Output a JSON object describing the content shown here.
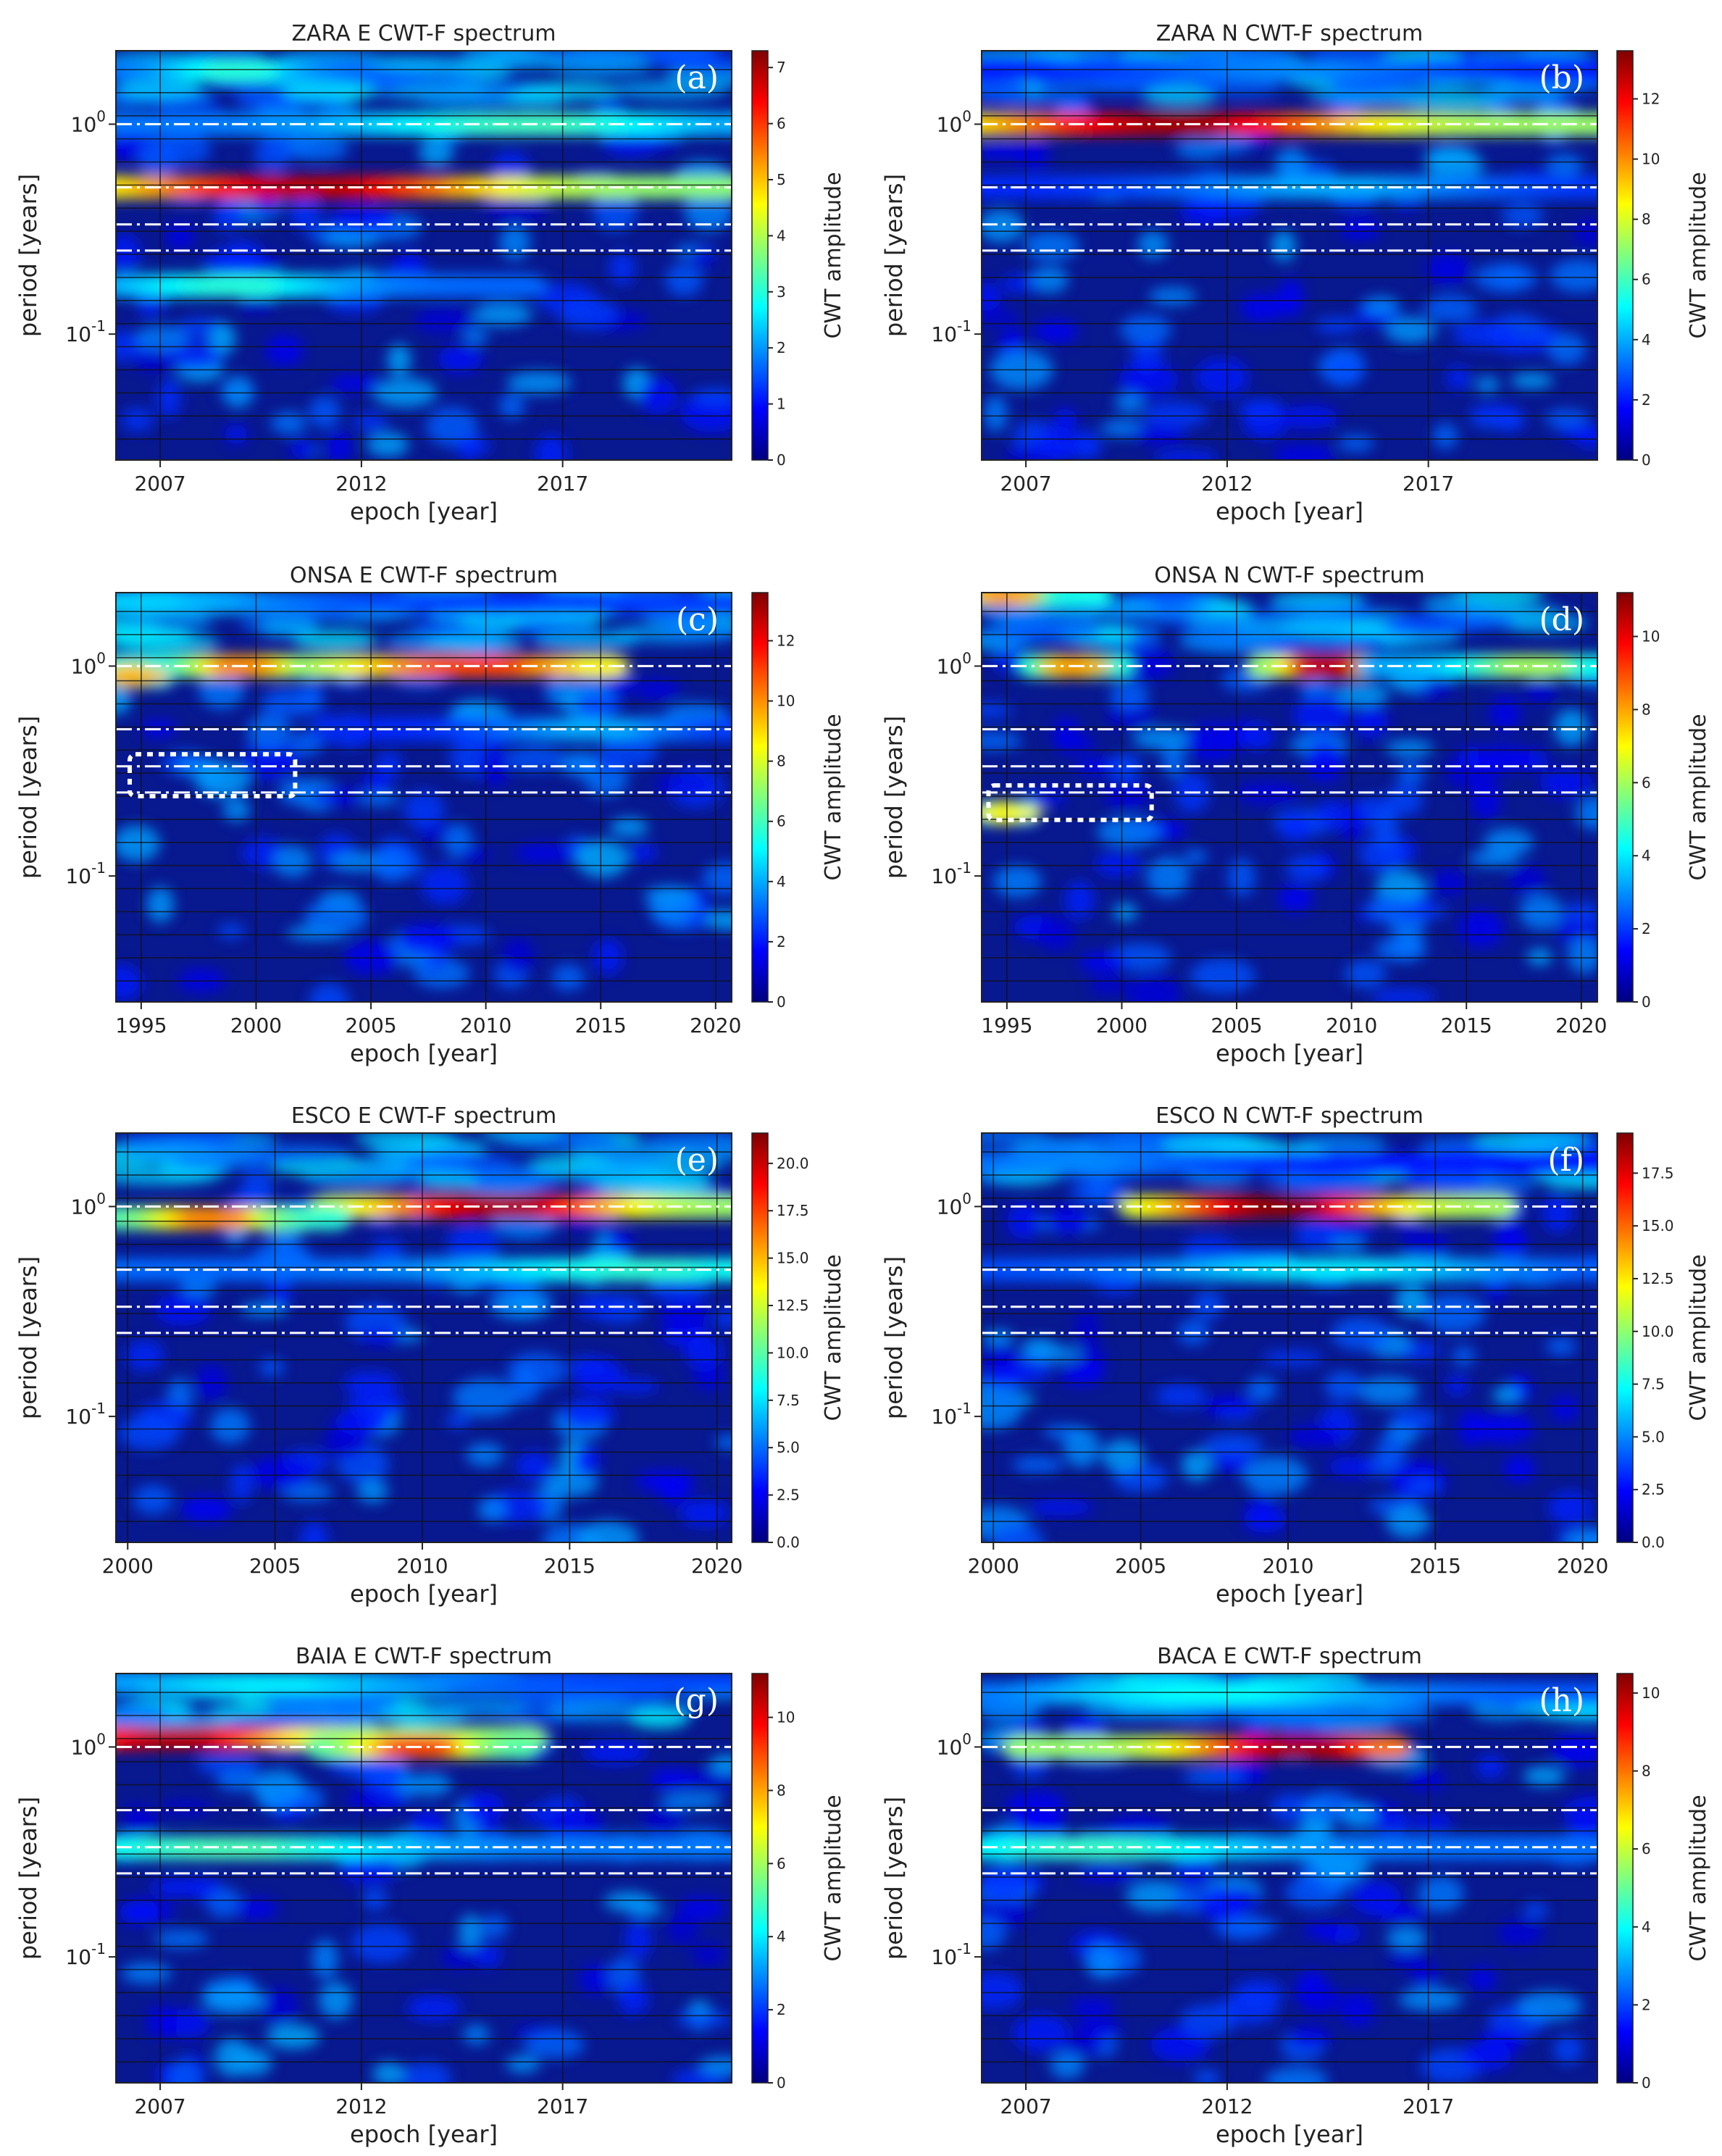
{
  "colors": {
    "jet": [
      "#00007f",
      "#0000ff",
      "#007fff",
      "#00ffff",
      "#7fff7f",
      "#ffff00",
      "#ff7f00",
      "#ff0000",
      "#7f0000"
    ],
    "background": "#08188f",
    "reference_lines": "#ffffff",
    "highlight_box": "#ffffff"
  },
  "chart_data": [
    {
      "id": "a",
      "panel_label": "(a)",
      "type": "heatmap",
      "title": "ZARA E CWT-F spectrum",
      "xlabel": "epoch [year]",
      "ylabel": "period [years]",
      "colorbar_label": "CWT amplitude",
      "xlim": [
        2005.9,
        2021.2
      ],
      "xticks": [
        2007,
        2012,
        2017
      ],
      "xtick_labels": [
        "2007",
        "2012",
        "2017"
      ],
      "ylim_log10": [
        -1.6,
        0.35
      ],
      "ytick_labels": [
        "10^-1",
        "10^0"
      ],
      "clim": [
        0,
        7.3
      ],
      "cbar_ticks": [
        0,
        1,
        2,
        3,
        4,
        5,
        6,
        7
      ],
      "cbar_tick_labels": [
        "0",
        "1",
        "2",
        "3",
        "4",
        "5",
        "6",
        "7"
      ],
      "reference_periods": [
        0.25,
        0.333,
        0.5,
        1.0
      ],
      "features": [
        {
          "period": 0.5,
          "start": 2006,
          "end": 2021.2,
          "peak": 2011,
          "amp": 6.8
        },
        {
          "period": 1.0,
          "start": 2006,
          "end": 2021.2,
          "peak": 2016.5,
          "amp": 3.2
        },
        {
          "period": 1.8,
          "start": 2006,
          "end": 2012,
          "peak": 2009,
          "amp": 3.0
        },
        {
          "period": 0.17,
          "start": 2006,
          "end": 2016,
          "peak": 2009,
          "amp": 3.0
        }
      ]
    },
    {
      "id": "b",
      "panel_label": "(b)",
      "type": "heatmap",
      "title": "ZARA N CWT-F spectrum",
      "xlabel": "epoch [year]",
      "ylabel": "period [years]",
      "colorbar_label": "CWT amplitude",
      "xlim": [
        2005.9,
        2021.2
      ],
      "xticks": [
        2007,
        2012,
        2017
      ],
      "xtick_labels": [
        "2007",
        "2012",
        "2017"
      ],
      "ylim_log10": [
        -1.6,
        0.35
      ],
      "ytick_labels": [
        "10^-1",
        "10^0"
      ],
      "clim": [
        0,
        13.6
      ],
      "cbar_ticks": [
        0,
        2,
        4,
        6,
        8,
        10,
        12
      ],
      "cbar_tick_labels": [
        "0",
        "2",
        "4",
        "6",
        "8",
        "10",
        "12"
      ],
      "reference_periods": [
        0.25,
        0.333,
        0.5,
        1.0
      ],
      "features": [
        {
          "period": 1.0,
          "start": 2006,
          "end": 2021.2,
          "peak": 2011,
          "amp": 13.0
        },
        {
          "period": 0.5,
          "start": 2006,
          "end": 2021.2,
          "peak": 2015,
          "amp": 4.0
        },
        {
          "period": 1.8,
          "start": 2006,
          "end": 2021.2,
          "peak": 2014,
          "amp": 3.5
        }
      ]
    },
    {
      "id": "c",
      "panel_label": "(c)",
      "type": "heatmap",
      "title": "ONSA E CWT-F spectrum",
      "xlabel": "epoch [year]",
      "ylabel": "period [years]",
      "colorbar_label": "CWT amplitude",
      "xlim": [
        1993.9,
        2020.7
      ],
      "xticks": [
        1995,
        2000,
        2005,
        2010,
        2015,
        2020
      ],
      "xtick_labels": [
        "1995",
        "2000",
        "2005",
        "2010",
        "2015",
        "2020"
      ],
      "ylim_log10": [
        -1.6,
        0.35
      ],
      "ytick_labels": [
        "10^-1",
        "10^0"
      ],
      "clim": [
        0,
        13.6
      ],
      "cbar_ticks": [
        0,
        2,
        4,
        6,
        8,
        10,
        12
      ],
      "cbar_tick_labels": [
        "0",
        "2",
        "4",
        "6",
        "8",
        "10",
        "12"
      ],
      "reference_periods": [
        0.25,
        0.333,
        0.5,
        1.0
      ],
      "highlight_box": {
        "x_start": 1994.5,
        "x_end": 2001.7,
        "period_low": 0.24,
        "period_high": 0.38
      },
      "features": [
        {
          "period": 1.0,
          "start": 1994,
          "end": 2015,
          "peak": 2010,
          "amp": 11.0
        },
        {
          "period": 1.0,
          "start": 1994,
          "end": 2001,
          "peak": 1999.5,
          "amp": 10.0
        },
        {
          "period": 0.9,
          "start": 1994,
          "end": 1996,
          "peak": 1994.7,
          "amp": 9.5
        },
        {
          "period": 0.5,
          "start": 2005,
          "end": 2020.7,
          "peak": 2015,
          "amp": 4.0
        },
        {
          "period": 2.0,
          "start": 1994,
          "end": 2020.7,
          "peak": 1995,
          "amp": 4.5
        }
      ]
    },
    {
      "id": "d",
      "panel_label": "(d)",
      "type": "heatmap",
      "title": "ONSA N CWT-F spectrum",
      "xlabel": "epoch [year]",
      "ylabel": "period [years]",
      "colorbar_label": "CWT amplitude",
      "xlim": [
        1993.9,
        2020.7
      ],
      "xticks": [
        1995,
        2000,
        2005,
        2010,
        2015,
        2020
      ],
      "xtick_labels": [
        "1995",
        "2000",
        "2005",
        "2010",
        "2015",
        "2020"
      ],
      "ylim_log10": [
        -1.6,
        0.35
      ],
      "ytick_labels": [
        "10^-1",
        "10^0"
      ],
      "clim": [
        0,
        11.2
      ],
      "cbar_ticks": [
        0,
        2,
        4,
        6,
        8,
        10
      ],
      "cbar_tick_labels": [
        "0",
        "2",
        "4",
        "6",
        "8",
        "10"
      ],
      "reference_periods": [
        0.25,
        0.333,
        0.5,
        1.0
      ],
      "highlight_box": {
        "x_start": 1994.2,
        "x_end": 2001.3,
        "period_low": 0.185,
        "period_high": 0.27
      },
      "features": [
        {
          "period": 1.0,
          "start": 2006,
          "end": 2011,
          "peak": 2009,
          "amp": 10.5
        },
        {
          "period": 1.0,
          "start": 1996,
          "end": 2000,
          "peak": 1998,
          "amp": 8.0
        },
        {
          "period": 1.0,
          "start": 2011,
          "end": 2020.7,
          "peak": 2018,
          "amp": 6.0
        },
        {
          "period": 0.2,
          "start": 1994,
          "end": 1996,
          "peak": 1995,
          "amp": 7.0
        },
        {
          "period": 2.2,
          "start": 1994,
          "end": 1999,
          "peak": 1995,
          "amp": 8.0
        }
      ]
    },
    {
      "id": "e",
      "panel_label": "(e)",
      "type": "heatmap",
      "title": "ESCO E CWT-F spectrum",
      "xlabel": "epoch [year]",
      "ylabel": "period [years]",
      "colorbar_label": "CWT amplitude",
      "xlim": [
        1999.6,
        2020.5
      ],
      "xticks": [
        2000,
        2005,
        2010,
        2015,
        2020
      ],
      "xtick_labels": [
        "2000",
        "2005",
        "2010",
        "2015",
        "2020"
      ],
      "ylim_log10": [
        -1.6,
        0.35
      ],
      "ytick_labels": [
        "10^-1",
        "10^0"
      ],
      "clim": [
        0,
        21.6
      ],
      "cbar_ticks": [
        0,
        2.5,
        5,
        7.5,
        10,
        12.5,
        15,
        17.5,
        20
      ],
      "cbar_tick_labels": [
        "0.0",
        "2.5",
        "5.0",
        "7.5",
        "10.0",
        "12.5",
        "15.0",
        "17.5",
        "20.0"
      ],
      "reference_periods": [
        0.25,
        0.333,
        0.5,
        1.0
      ],
      "features": [
        {
          "period": 1.0,
          "start": 2007,
          "end": 2020.5,
          "peak": 2013,
          "amp": 20.5
        },
        {
          "period": 0.88,
          "start": 1999.6,
          "end": 2007,
          "peak": 2003,
          "amp": 16.0
        },
        {
          "period": 0.5,
          "start": 1999.6,
          "end": 2020.5,
          "peak": 2018,
          "amp": 9.0
        }
      ]
    },
    {
      "id": "f",
      "panel_label": "(f)",
      "type": "heatmap",
      "title": "ESCO N CWT-F spectrum",
      "xlabel": "epoch [year]",
      "ylabel": "period [years]",
      "colorbar_label": "CWT amplitude",
      "xlim": [
        1999.6,
        2020.5
      ],
      "xticks": [
        2000,
        2005,
        2010,
        2015,
        2020
      ],
      "xtick_labels": [
        "2000",
        "2005",
        "2010",
        "2015",
        "2020"
      ],
      "ylim_log10": [
        -1.6,
        0.35
      ],
      "ytick_labels": [
        "10^-1",
        "10^0"
      ],
      "clim": [
        0,
        19.4
      ],
      "cbar_ticks": [
        0,
        2.5,
        5,
        7.5,
        10,
        12.5,
        15,
        17.5
      ],
      "cbar_tick_labels": [
        "0.0",
        "2.5",
        "5.0",
        "7.5",
        "10.0",
        "12.5",
        "15.0",
        "17.5"
      ],
      "reference_periods": [
        0.25,
        0.333,
        0.5,
        1.0
      ],
      "features": [
        {
          "period": 1.0,
          "start": 2005,
          "end": 2017,
          "peak": 2010,
          "amp": 19.0
        },
        {
          "period": 0.5,
          "start": 1999.6,
          "end": 2020.5,
          "peak": 2012,
          "amp": 7.0
        },
        {
          "period": 1.6,
          "start": 1999.6,
          "end": 2020.5,
          "peak": 2003,
          "amp": 5.0
        }
      ]
    },
    {
      "id": "g",
      "panel_label": "(g)",
      "type": "heatmap",
      "title": "BAIA E CWT-F spectrum",
      "xlabel": "epoch [year]",
      "ylabel": "period [years]",
      "colorbar_label": "CWT amplitude",
      "xlim": [
        2005.9,
        2021.2
      ],
      "xticks": [
        2007,
        2012,
        2017
      ],
      "xtick_labels": [
        "2007",
        "2012",
        "2017"
      ],
      "ylim_log10": [
        -1.6,
        0.35
      ],
      "ytick_labels": [
        "10^-1",
        "10^0"
      ],
      "clim": [
        0,
        11.2
      ],
      "cbar_ticks": [
        0,
        2,
        4,
        6,
        8,
        10
      ],
      "cbar_tick_labels": [
        "0",
        "2",
        "4",
        "6",
        "8",
        "10"
      ],
      "reference_periods": [
        0.25,
        0.333,
        0.5,
        1.0
      ],
      "features": [
        {
          "period": 1.1,
          "start": 2006,
          "end": 2016,
          "peak": 2007.5,
          "amp": 10.5
        },
        {
          "period": 1.0,
          "start": 2011,
          "end": 2016,
          "peak": 2013.5,
          "amp": 9.0
        },
        {
          "period": 0.33,
          "start": 2006,
          "end": 2021.2,
          "peak": 2009,
          "amp": 5.0
        },
        {
          "period": 2.0,
          "start": 2006,
          "end": 2021.2,
          "peak": 2010,
          "amp": 4.0
        }
      ]
    },
    {
      "id": "h",
      "panel_label": "(h)",
      "type": "heatmap",
      "title": "BACA E CWT-F spectrum",
      "xlabel": "epoch [year]",
      "ylabel": "period [years]",
      "colorbar_label": "CWT amplitude",
      "xlim": [
        2005.9,
        2021.2
      ],
      "xticks": [
        2007,
        2012,
        2017
      ],
      "xtick_labels": [
        "2007",
        "2012",
        "2017"
      ],
      "ylim_log10": [
        -1.6,
        0.35
      ],
      "ytick_labels": [
        "10^-1",
        "10^0"
      ],
      "clim": [
        0,
        10.5
      ],
      "cbar_ticks": [
        0,
        2,
        4,
        6,
        8,
        10
      ],
      "cbar_tick_labels": [
        "0",
        "2",
        "4",
        "6",
        "8",
        "10"
      ],
      "reference_periods": [
        0.25,
        0.333,
        0.5,
        1.0
      ],
      "features": [
        {
          "period": 1.0,
          "start": 2007,
          "end": 2016,
          "peak": 2014,
          "amp": 10.0
        },
        {
          "period": 0.33,
          "start": 2006,
          "end": 2021.2,
          "peak": 2009,
          "amp": 4.5
        },
        {
          "period": 1.8,
          "start": 2006,
          "end": 2021.2,
          "peak": 2012,
          "amp": 4.0
        }
      ]
    }
  ]
}
